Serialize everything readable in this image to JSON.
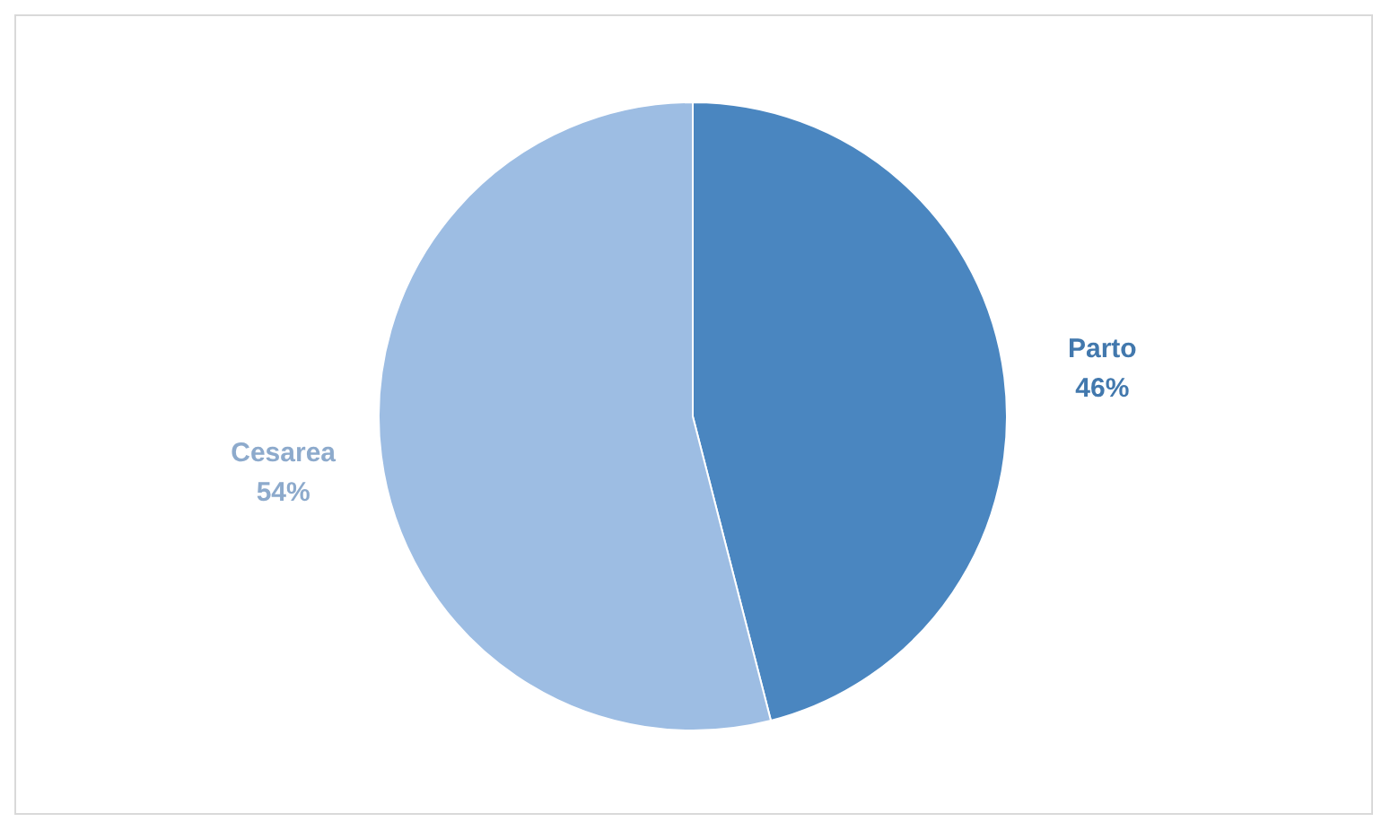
{
  "chart_data": {
    "type": "pie",
    "categories": [
      "Parto",
      "Cesarea"
    ],
    "values": [
      46,
      54
    ],
    "colors": [
      "#4a86c0",
      "#9dbde3"
    ],
    "value_labels": [
      "46%",
      "54%"
    ]
  }
}
